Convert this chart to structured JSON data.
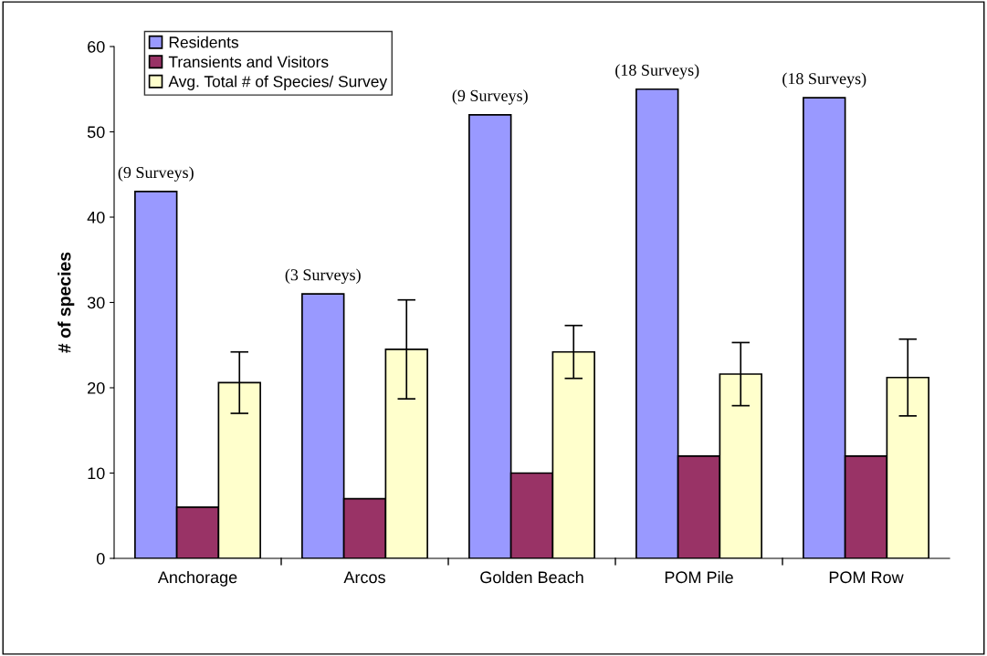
{
  "chart_data": {
    "type": "bar",
    "ylabel": "# of species",
    "categories": [
      "Anchorage",
      "Arcos",
      "Golden Beach",
      "POM Pile",
      "POM Row"
    ],
    "series": [
      {
        "name": "Residents",
        "color": "#9999ff",
        "values": [
          43,
          31,
          52,
          55,
          54
        ]
      },
      {
        "name": "Transients and Visitors",
        "color": "#993366",
        "values": [
          6,
          7,
          10,
          12,
          12
        ]
      },
      {
        "name": "Avg. Total # of Species/ Survey",
        "color": "#ffffcc",
        "values": [
          20.6,
          24.5,
          24.2,
          21.6,
          21.2
        ],
        "errors": [
          3.6,
          5.8,
          3.1,
          3.7,
          4.5
        ]
      }
    ],
    "ylim": [
      0,
      60
    ],
    "yticks": [
      0,
      10,
      20,
      30,
      40,
      50,
      60
    ],
    "annotations": [
      "(9 Surveys)",
      "(3 Surveys)",
      "(9 Surveys)",
      "(18 Surveys)",
      "(18 Surveys)"
    ],
    "grid": false,
    "legend": "top left"
  }
}
